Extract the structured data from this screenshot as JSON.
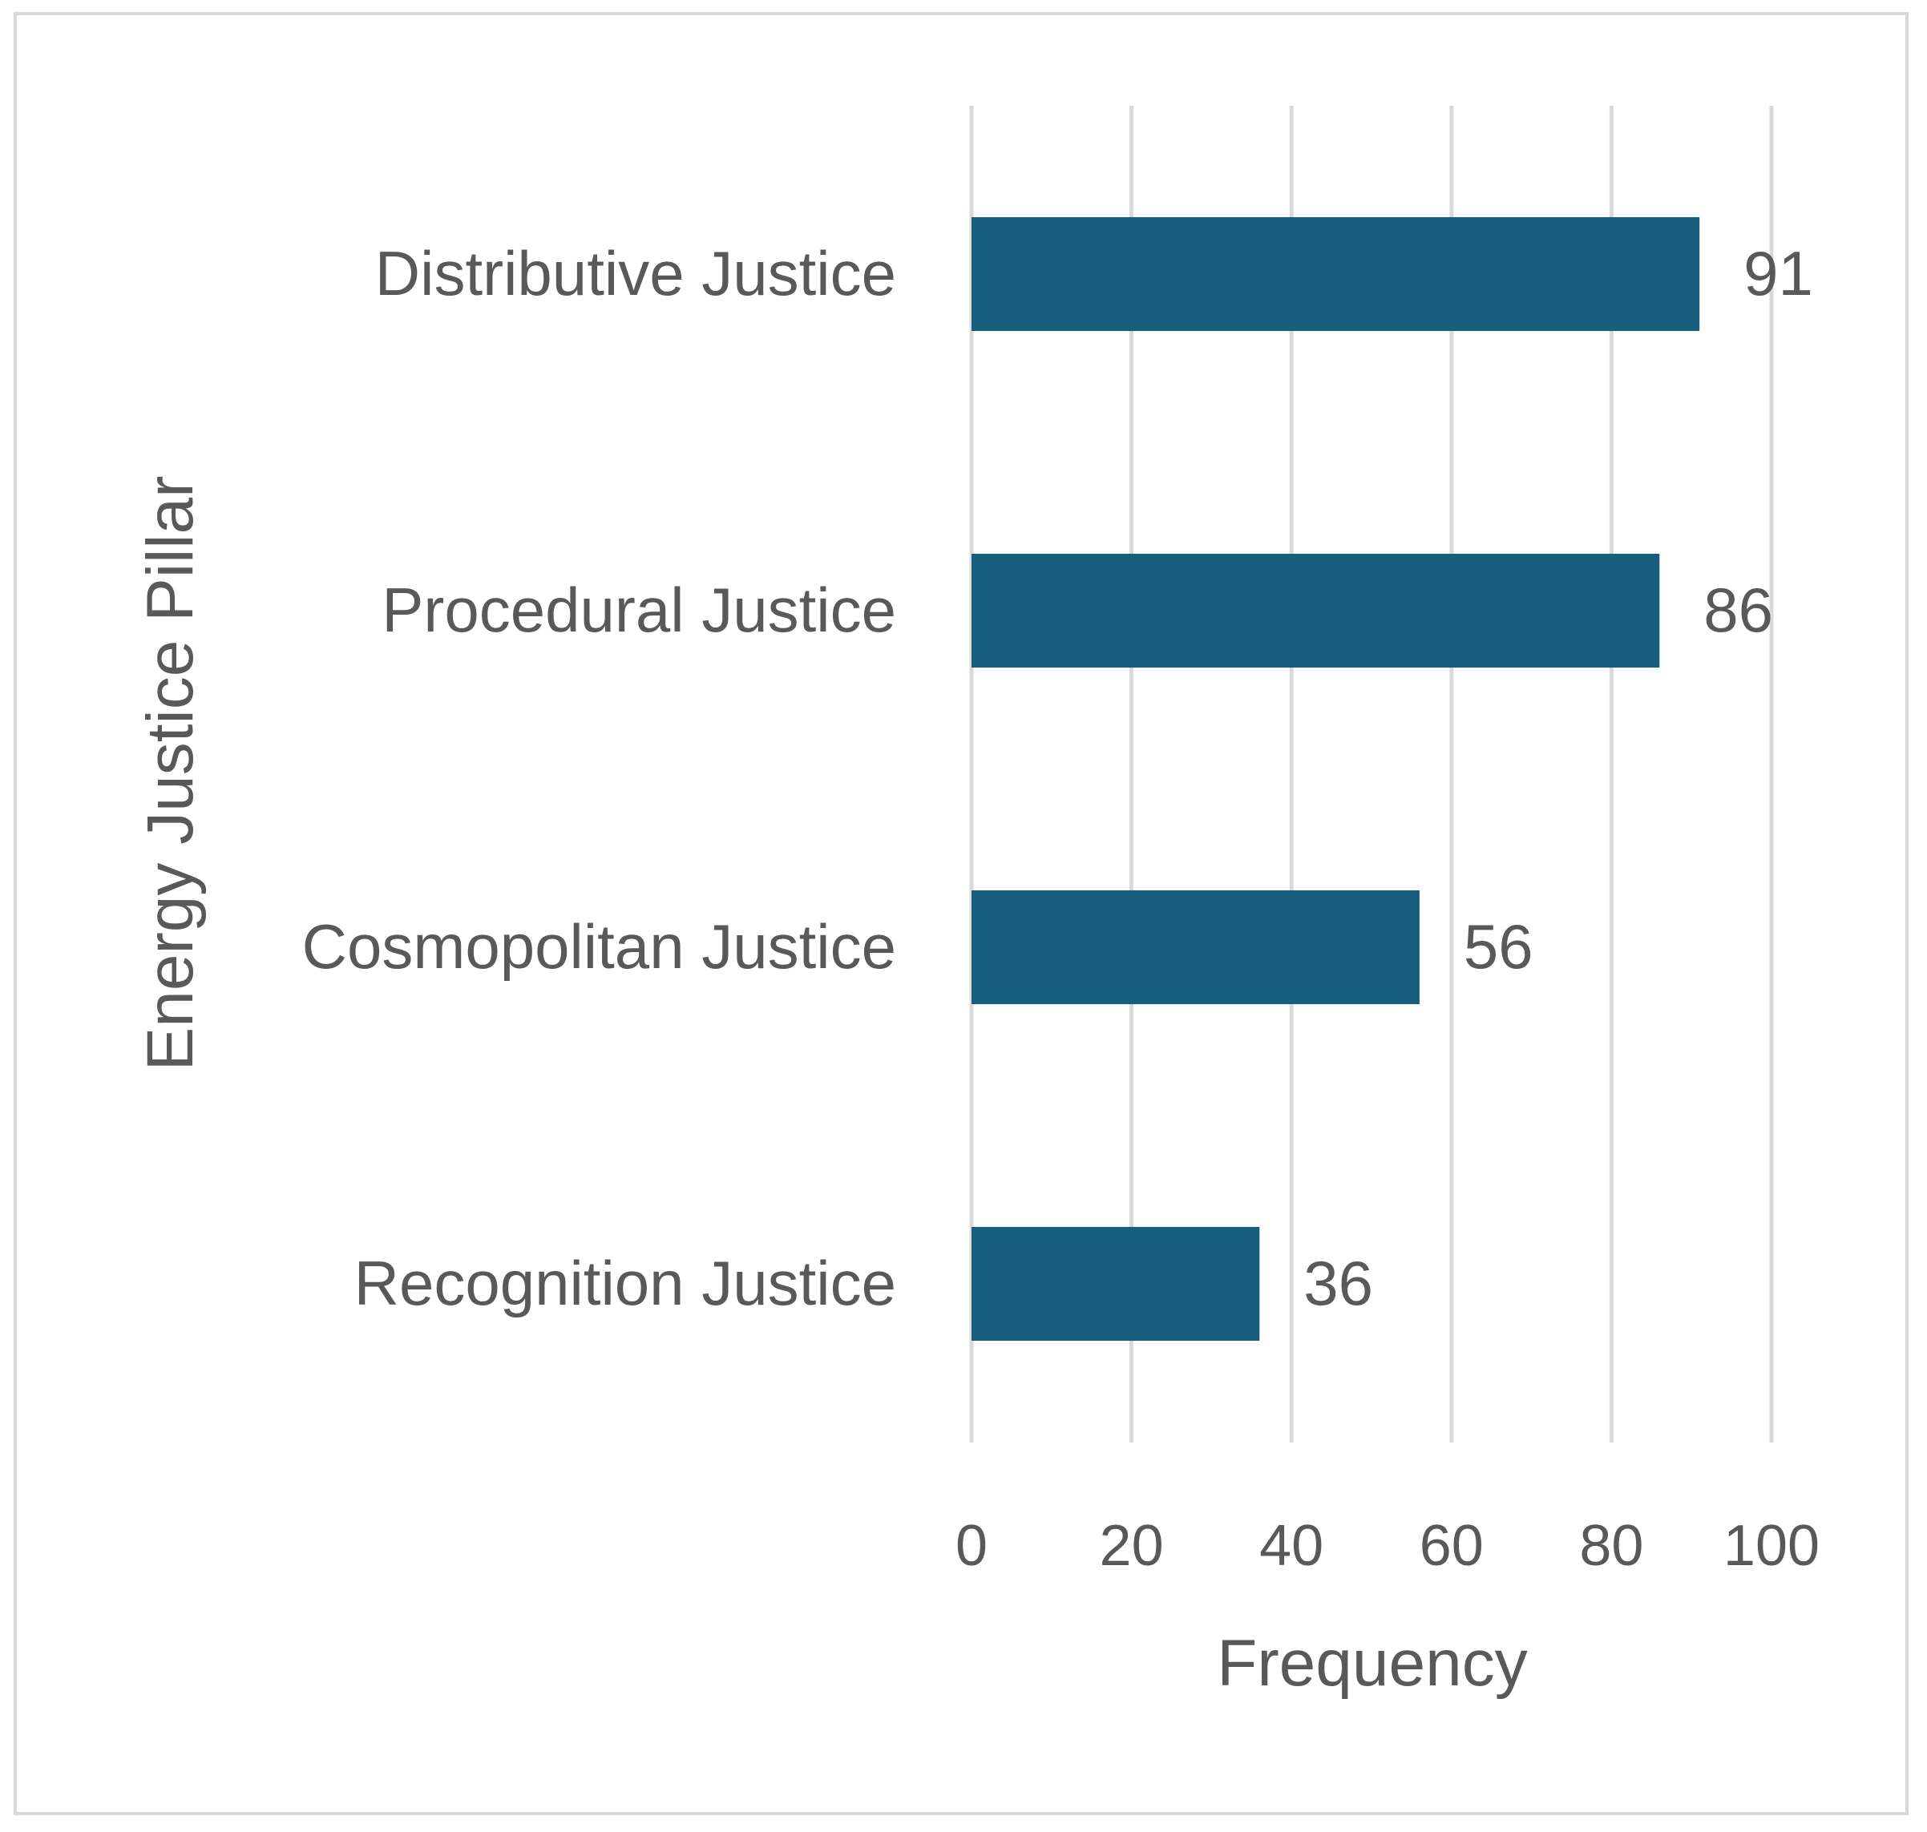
{
  "chart_data": {
    "type": "bar",
    "orientation": "horizontal",
    "categories": [
      "Distributive Justice",
      "Procedural Justice",
      "Cosmopolitan Justice",
      "Recognition Justice"
    ],
    "values": [
      91,
      86,
      56,
      36
    ],
    "data_labels": [
      "91",
      "86",
      "56",
      "36"
    ],
    "title": "",
    "xlabel": "Frequency",
    "ylabel": "Energy Justice Pillar",
    "xlim": [
      0,
      100
    ],
    "x_ticks": [
      0,
      20,
      40,
      60,
      80,
      100
    ],
    "x_tick_labels": [
      "0",
      "20",
      "40",
      "60",
      "80",
      "100"
    ],
    "grid": "vertical",
    "legend": "none",
    "bar_color": "#175e7e",
    "grid_color": "#d9d9d9",
    "text_color": "#595959"
  }
}
